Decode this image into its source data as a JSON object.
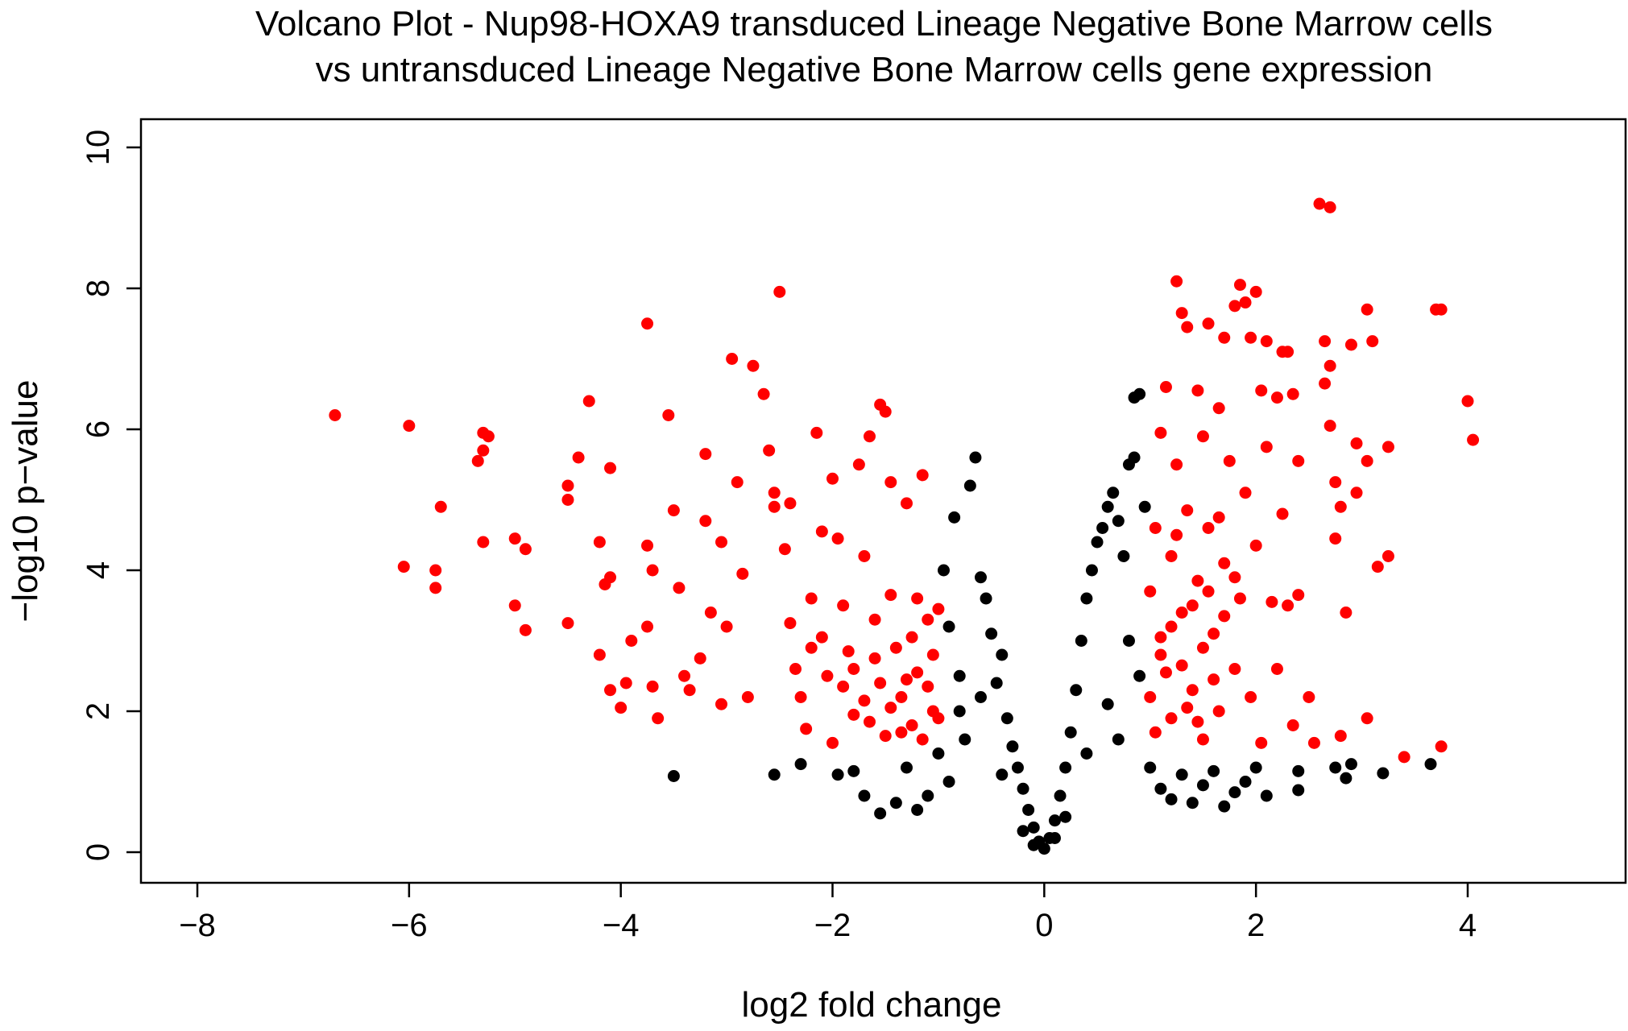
{
  "chart_data": {
    "type": "scatter",
    "title_line1": "Volcano Plot - Nup98-HOXA9 transduced Lineage Negative Bone Marrow cells",
    "title_line2": "vs untransduced Lineage Negative Bone Marrow cells gene expression",
    "xlabel": "log2 fold change",
    "ylabel": "−log10 p−value",
    "xlim": [
      -8.8,
      5.4
    ],
    "ylim": [
      -0.4,
      10.4
    ],
    "x_ticks": [
      -8,
      -6,
      -4,
      -2,
      0,
      2,
      4
    ],
    "x_tick_labels": [
      "−8",
      "−6",
      "−4",
      "−2",
      "0",
      "2",
      "4"
    ],
    "y_ticks": [
      0,
      2,
      4,
      6,
      8,
      10
    ],
    "y_tick_labels": [
      "0",
      "2",
      "4",
      "6",
      "8",
      "10"
    ],
    "grid": false,
    "legend": "none",
    "colors": {
      "significant": "#ff0000",
      "not_significant": "#000000"
    },
    "significance_thresholds": {
      "abs_log2fc": 1,
      "neg_log10_p": 1.3
    },
    "series": [
      {
        "color": "#ff0000",
        "points": [
          [
            -6.7,
            6.2
          ],
          [
            -6.0,
            6.05
          ],
          [
            -6.05,
            4.05
          ],
          [
            -5.75,
            4.0
          ],
          [
            -5.75,
            3.75
          ],
          [
            -5.7,
            4.9
          ],
          [
            -5.3,
            5.95
          ],
          [
            -5.25,
            5.9
          ],
          [
            -5.3,
            5.7
          ],
          [
            -5.35,
            5.55
          ],
          [
            -5.3,
            4.4
          ],
          [
            -5.0,
            4.45
          ],
          [
            -4.9,
            4.3
          ],
          [
            -5.0,
            3.5
          ],
          [
            -4.9,
            3.15
          ],
          [
            -4.5,
            5.2
          ],
          [
            -4.5,
            5.0
          ],
          [
            -4.5,
            3.25
          ],
          [
            -4.4,
            5.6
          ],
          [
            -4.3,
            6.4
          ],
          [
            -4.2,
            4.4
          ],
          [
            -4.1,
            5.45
          ],
          [
            -4.15,
            3.8
          ],
          [
            -4.1,
            3.9
          ],
          [
            -4.2,
            2.8
          ],
          [
            -4.1,
            2.3
          ],
          [
            -4.0,
            2.05
          ],
          [
            -3.95,
            2.4
          ],
          [
            -3.9,
            3.0
          ],
          [
            -3.75,
            7.5
          ],
          [
            -3.75,
            4.35
          ],
          [
            -3.7,
            4.0
          ],
          [
            -3.75,
            3.2
          ],
          [
            -3.7,
            2.35
          ],
          [
            -3.65,
            1.9
          ],
          [
            -3.55,
            6.2
          ],
          [
            -3.5,
            4.85
          ],
          [
            -3.45,
            3.75
          ],
          [
            -3.4,
            2.5
          ],
          [
            -3.35,
            2.3
          ],
          [
            -3.25,
            2.75
          ],
          [
            -3.2,
            5.65
          ],
          [
            -3.2,
            4.7
          ],
          [
            -3.15,
            3.4
          ],
          [
            -3.05,
            4.4
          ],
          [
            -3.05,
            2.1
          ],
          [
            -3.0,
            3.2
          ],
          [
            -2.95,
            7.0
          ],
          [
            -2.9,
            5.25
          ],
          [
            -2.85,
            3.95
          ],
          [
            -2.8,
            2.2
          ],
          [
            -2.75,
            6.9
          ],
          [
            -2.65,
            6.5
          ],
          [
            -2.6,
            5.7
          ],
          [
            -2.55,
            5.1
          ],
          [
            -2.55,
            4.9
          ],
          [
            -2.5,
            7.95
          ],
          [
            -2.45,
            4.3
          ],
          [
            -2.4,
            4.95
          ],
          [
            -2.4,
            3.25
          ],
          [
            -2.35,
            2.6
          ],
          [
            -2.3,
            2.2
          ],
          [
            -2.25,
            1.75
          ],
          [
            -2.2,
            3.6
          ],
          [
            -2.2,
            2.9
          ],
          [
            -2.15,
            5.95
          ],
          [
            -2.1,
            4.55
          ],
          [
            -2.05,
            2.5
          ],
          [
            -2.0,
            5.3
          ],
          [
            -1.95,
            4.45
          ],
          [
            -1.9,
            3.5
          ],
          [
            -1.85,
            2.85
          ],
          [
            -1.8,
            1.95
          ],
          [
            -1.75,
            5.5
          ],
          [
            -1.7,
            4.2
          ],
          [
            -1.65,
            5.9
          ],
          [
            -1.6,
            3.3
          ],
          [
            -1.55,
            2.4
          ],
          [
            -1.55,
            6.35
          ],
          [
            -1.5,
            6.25
          ],
          [
            -1.45,
            5.25
          ],
          [
            -1.45,
            3.65
          ],
          [
            -1.4,
            2.9
          ],
          [
            -1.35,
            2.2
          ],
          [
            -1.35,
            1.7
          ],
          [
            -1.3,
            4.95
          ],
          [
            -1.25,
            3.05
          ],
          [
            -1.2,
            2.55
          ],
          [
            -1.15,
            5.35
          ],
          [
            -1.15,
            1.6
          ],
          [
            -1.1,
            3.3
          ],
          [
            -1.05,
            2.0
          ],
          [
            -1.05,
            2.8
          ],
          [
            -1.0,
            3.45
          ],
          [
            -1.0,
            1.9
          ],
          [
            -1.8,
            2.6
          ],
          [
            -1.7,
            2.15
          ],
          [
            -1.65,
            1.85
          ],
          [
            -1.6,
            2.75
          ],
          [
            -1.5,
            1.65
          ],
          [
            -1.45,
            2.05
          ],
          [
            -1.3,
            2.45
          ],
          [
            -1.25,
            1.8
          ],
          [
            -1.2,
            3.6
          ],
          [
            -1.1,
            2.35
          ],
          [
            -1.9,
            2.35
          ],
          [
            -2.0,
            1.55
          ],
          [
            -2.1,
            3.05
          ],
          [
            1.0,
            3.7
          ],
          [
            1.0,
            2.2
          ],
          [
            1.05,
            4.6
          ],
          [
            1.05,
            1.7
          ],
          [
            1.1,
            5.95
          ],
          [
            1.1,
            3.05
          ],
          [
            1.15,
            6.6
          ],
          [
            1.15,
            2.55
          ],
          [
            1.2,
            4.2
          ],
          [
            1.2,
            1.9
          ],
          [
            1.25,
            8.1
          ],
          [
            1.25,
            5.5
          ],
          [
            1.3,
            7.65
          ],
          [
            1.3,
            3.4
          ],
          [
            1.35,
            7.45
          ],
          [
            1.35,
            4.85
          ],
          [
            1.4,
            2.3
          ],
          [
            1.45,
            6.55
          ],
          [
            1.45,
            3.85
          ],
          [
            1.5,
            5.9
          ],
          [
            1.5,
            1.6
          ],
          [
            1.55,
            7.5
          ],
          [
            1.55,
            4.6
          ],
          [
            1.6,
            3.1
          ],
          [
            1.65,
            6.3
          ],
          [
            1.65,
            2.0
          ],
          [
            1.7,
            7.3
          ],
          [
            1.7,
            4.1
          ],
          [
            1.75,
            5.55
          ],
          [
            1.8,
            7.75
          ],
          [
            1.8,
            2.6
          ],
          [
            1.85,
            8.05
          ],
          [
            1.85,
            3.6
          ],
          [
            1.9,
            7.8
          ],
          [
            1.9,
            5.1
          ],
          [
            1.95,
            7.3
          ],
          [
            1.95,
            2.2
          ],
          [
            2.0,
            7.95
          ],
          [
            2.0,
            4.35
          ],
          [
            2.05,
            6.55
          ],
          [
            2.05,
            1.55
          ],
          [
            2.1,
            7.25
          ],
          [
            2.1,
            5.75
          ],
          [
            2.15,
            3.55
          ],
          [
            2.2,
            6.45
          ],
          [
            2.2,
            2.6
          ],
          [
            2.25,
            7.1
          ],
          [
            2.25,
            4.8
          ],
          [
            2.3,
            7.1
          ],
          [
            2.3,
            3.5
          ],
          [
            2.35,
            6.5
          ],
          [
            2.35,
            1.8
          ],
          [
            2.4,
            5.55
          ],
          [
            2.4,
            3.65
          ],
          [
            2.5,
            2.2
          ],
          [
            2.55,
            1.55
          ],
          [
            2.6,
            9.2
          ],
          [
            2.65,
            6.65
          ],
          [
            2.65,
            7.25
          ],
          [
            2.7,
            6.9
          ],
          [
            2.7,
            9.15
          ],
          [
            2.7,
            6.05
          ],
          [
            2.75,
            4.45
          ],
          [
            2.75,
            5.25
          ],
          [
            2.8,
            4.9
          ],
          [
            2.85,
            3.4
          ],
          [
            2.8,
            1.65
          ],
          [
            2.9,
            7.2
          ],
          [
            2.95,
            5.8
          ],
          [
            2.95,
            5.1
          ],
          [
            3.05,
            7.7
          ],
          [
            3.05,
            5.55
          ],
          [
            3.05,
            1.9
          ],
          [
            3.1,
            7.25
          ],
          [
            3.15,
            4.05
          ],
          [
            3.25,
            5.75
          ],
          [
            3.25,
            4.2
          ],
          [
            3.4,
            1.35
          ],
          [
            3.7,
            7.7
          ],
          [
            3.75,
            7.7
          ],
          [
            3.75,
            1.5
          ],
          [
            4.0,
            6.4
          ],
          [
            4.05,
            5.85
          ],
          [
            1.1,
            2.8
          ],
          [
            1.2,
            3.2
          ],
          [
            1.3,
            2.65
          ],
          [
            1.4,
            3.5
          ],
          [
            1.5,
            2.9
          ],
          [
            1.6,
            2.45
          ],
          [
            1.7,
            3.35
          ],
          [
            1.8,
            3.9
          ],
          [
            1.25,
            4.5
          ],
          [
            1.35,
            2.05
          ],
          [
            1.45,
            1.85
          ],
          [
            1.55,
            3.7
          ],
          [
            1.65,
            4.75
          ]
        ]
      },
      {
        "color": "#000000",
        "points": [
          [
            -3.5,
            1.08
          ],
          [
            -2.55,
            1.1
          ],
          [
            -2.3,
            1.25
          ],
          [
            -1.95,
            1.1
          ],
          [
            -1.8,
            1.15
          ],
          [
            -1.7,
            0.8
          ],
          [
            -1.55,
            0.55
          ],
          [
            -1.4,
            0.7
          ],
          [
            -1.3,
            1.2
          ],
          [
            -1.2,
            0.6
          ],
          [
            -1.1,
            0.8
          ],
          [
            -1.0,
            1.4
          ],
          [
            -0.95,
            4.0
          ],
          [
            -0.9,
            3.2
          ],
          [
            -0.85,
            4.75
          ],
          [
            -0.8,
            2.5
          ],
          [
            -0.75,
            1.6
          ],
          [
            -0.7,
            5.2
          ],
          [
            -0.65,
            5.6
          ],
          [
            -0.6,
            3.9
          ],
          [
            -0.55,
            3.6
          ],
          [
            -0.5,
            3.1
          ],
          [
            -0.45,
            2.4
          ],
          [
            -0.4,
            2.8
          ],
          [
            -0.35,
            1.9
          ],
          [
            -0.3,
            1.5
          ],
          [
            -0.25,
            1.2
          ],
          [
            -0.2,
            0.9
          ],
          [
            -0.15,
            0.6
          ],
          [
            -0.1,
            0.35
          ],
          [
            -0.05,
            0.15
          ],
          [
            0.0,
            0.05
          ],
          [
            0.05,
            0.2
          ],
          [
            0.1,
            0.45
          ],
          [
            0.15,
            0.8
          ],
          [
            0.2,
            1.2
          ],
          [
            0.25,
            1.7
          ],
          [
            0.3,
            2.3
          ],
          [
            0.35,
            3.0
          ],
          [
            0.4,
            3.6
          ],
          [
            0.45,
            4.0
          ],
          [
            0.5,
            4.4
          ],
          [
            0.55,
            4.6
          ],
          [
            0.6,
            4.9
          ],
          [
            0.65,
            5.1
          ],
          [
            0.7,
            4.7
          ],
          [
            0.75,
            4.2
          ],
          [
            0.8,
            5.5
          ],
          [
            0.85,
            5.6
          ],
          [
            0.85,
            6.45
          ],
          [
            0.9,
            6.5
          ],
          [
            0.95,
            4.9
          ],
          [
            1.0,
            1.2
          ],
          [
            1.1,
            0.9
          ],
          [
            1.2,
            0.75
          ],
          [
            1.3,
            1.1
          ],
          [
            1.4,
            0.7
          ],
          [
            1.5,
            0.95
          ],
          [
            1.6,
            1.15
          ],
          [
            1.7,
            0.65
          ],
          [
            1.8,
            0.85
          ],
          [
            1.9,
            1.0
          ],
          [
            2.0,
            1.2
          ],
          [
            2.1,
            0.8
          ],
          [
            2.4,
            1.15
          ],
          [
            2.4,
            0.88
          ],
          [
            2.75,
            1.2
          ],
          [
            2.85,
            1.05
          ],
          [
            2.9,
            1.25
          ],
          [
            3.2,
            1.12
          ],
          [
            3.65,
            1.25
          ],
          [
            -0.8,
            2.0
          ],
          [
            -0.6,
            2.2
          ],
          [
            -0.4,
            1.1
          ],
          [
            0.4,
            1.4
          ],
          [
            0.6,
            2.1
          ],
          [
            0.8,
            3.0
          ],
          [
            -0.9,
            1.0
          ],
          [
            0.7,
            1.6
          ],
          [
            -0.2,
            0.3
          ],
          [
            0.2,
            0.5
          ],
          [
            0.1,
            0.2
          ],
          [
            -0.1,
            0.1
          ],
          [
            0.9,
            2.5
          ]
        ]
      }
    ]
  }
}
